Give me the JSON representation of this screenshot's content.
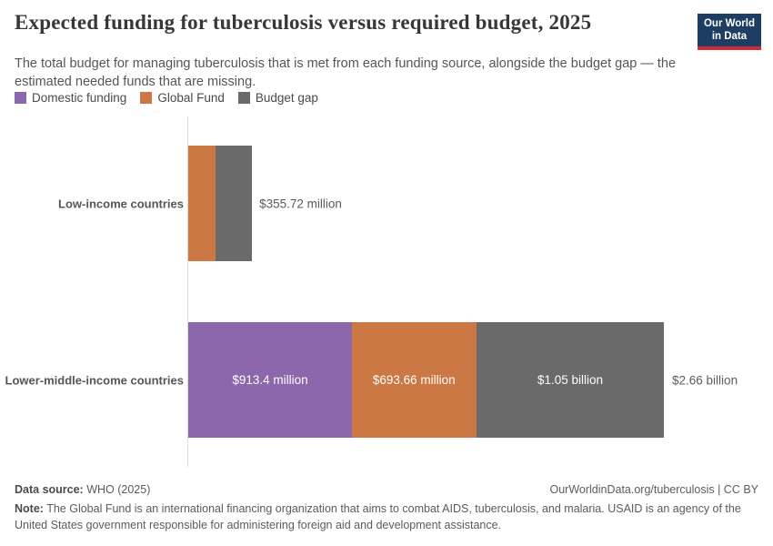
{
  "header": {
    "title": "Expected funding for tuberculosis versus required budget, 2025",
    "subtitle": "The total budget for managing tuberculosis that is met from each funding source, alongside the budget gap — the estimated needed funds that are missing.",
    "logo": {
      "line1": "Our World",
      "line2": "in Data",
      "bg_color": "#1d3d63",
      "accent_color": "#d0293a"
    }
  },
  "legend": {
    "items": [
      {
        "label": "Domestic funding",
        "color": "#8c67ac"
      },
      {
        "label": "Global Fund",
        "color": "#cc7845"
      },
      {
        "label": "Budget gap",
        "color": "#6a6a6a"
      }
    ]
  },
  "chart_data": {
    "type": "bar",
    "orientation": "horizontal",
    "stacked": true,
    "unit": "US$ million",
    "title": "Expected funding for tuberculosis versus required budget, 2025",
    "categories": [
      "Low-income countries",
      "Lower-middle-income countries"
    ],
    "series": [
      {
        "name": "Domestic funding",
        "color": "#8c67ac",
        "values_million": [
          0,
          913.4
        ],
        "value_labels": [
          "",
          "$913.4 million"
        ]
      },
      {
        "name": "Global Fund",
        "color": "#cc7845",
        "values_million": [
          152,
          693.66
        ],
        "value_labels": [
          "",
          "$693.66 million"
        ]
      },
      {
        "name": "Budget gap",
        "color": "#6a6a6a",
        "values_million": [
          203.72,
          1050
        ],
        "value_labels": [
          "",
          "$1.05 billion"
        ]
      }
    ],
    "totals": [
      {
        "value_million": 355.72,
        "label": "$355.72 million"
      },
      {
        "value_million": 2660,
        "label": "$2.66 billion"
      }
    ],
    "legend_position": "top",
    "grid": false
  },
  "footer": {
    "data_source_label": "Data source:",
    "data_source_value": "WHO (2025)",
    "link_text": "OurWorldinData.org/tuberculosis | CC BY",
    "note_label": "Note:",
    "note_text": "The Global Fund is an international financing organization that aims to combat AIDS, tuberculosis, and malaria. USAID is an agency of the United States government responsible for administering foreign aid and development assistance."
  }
}
